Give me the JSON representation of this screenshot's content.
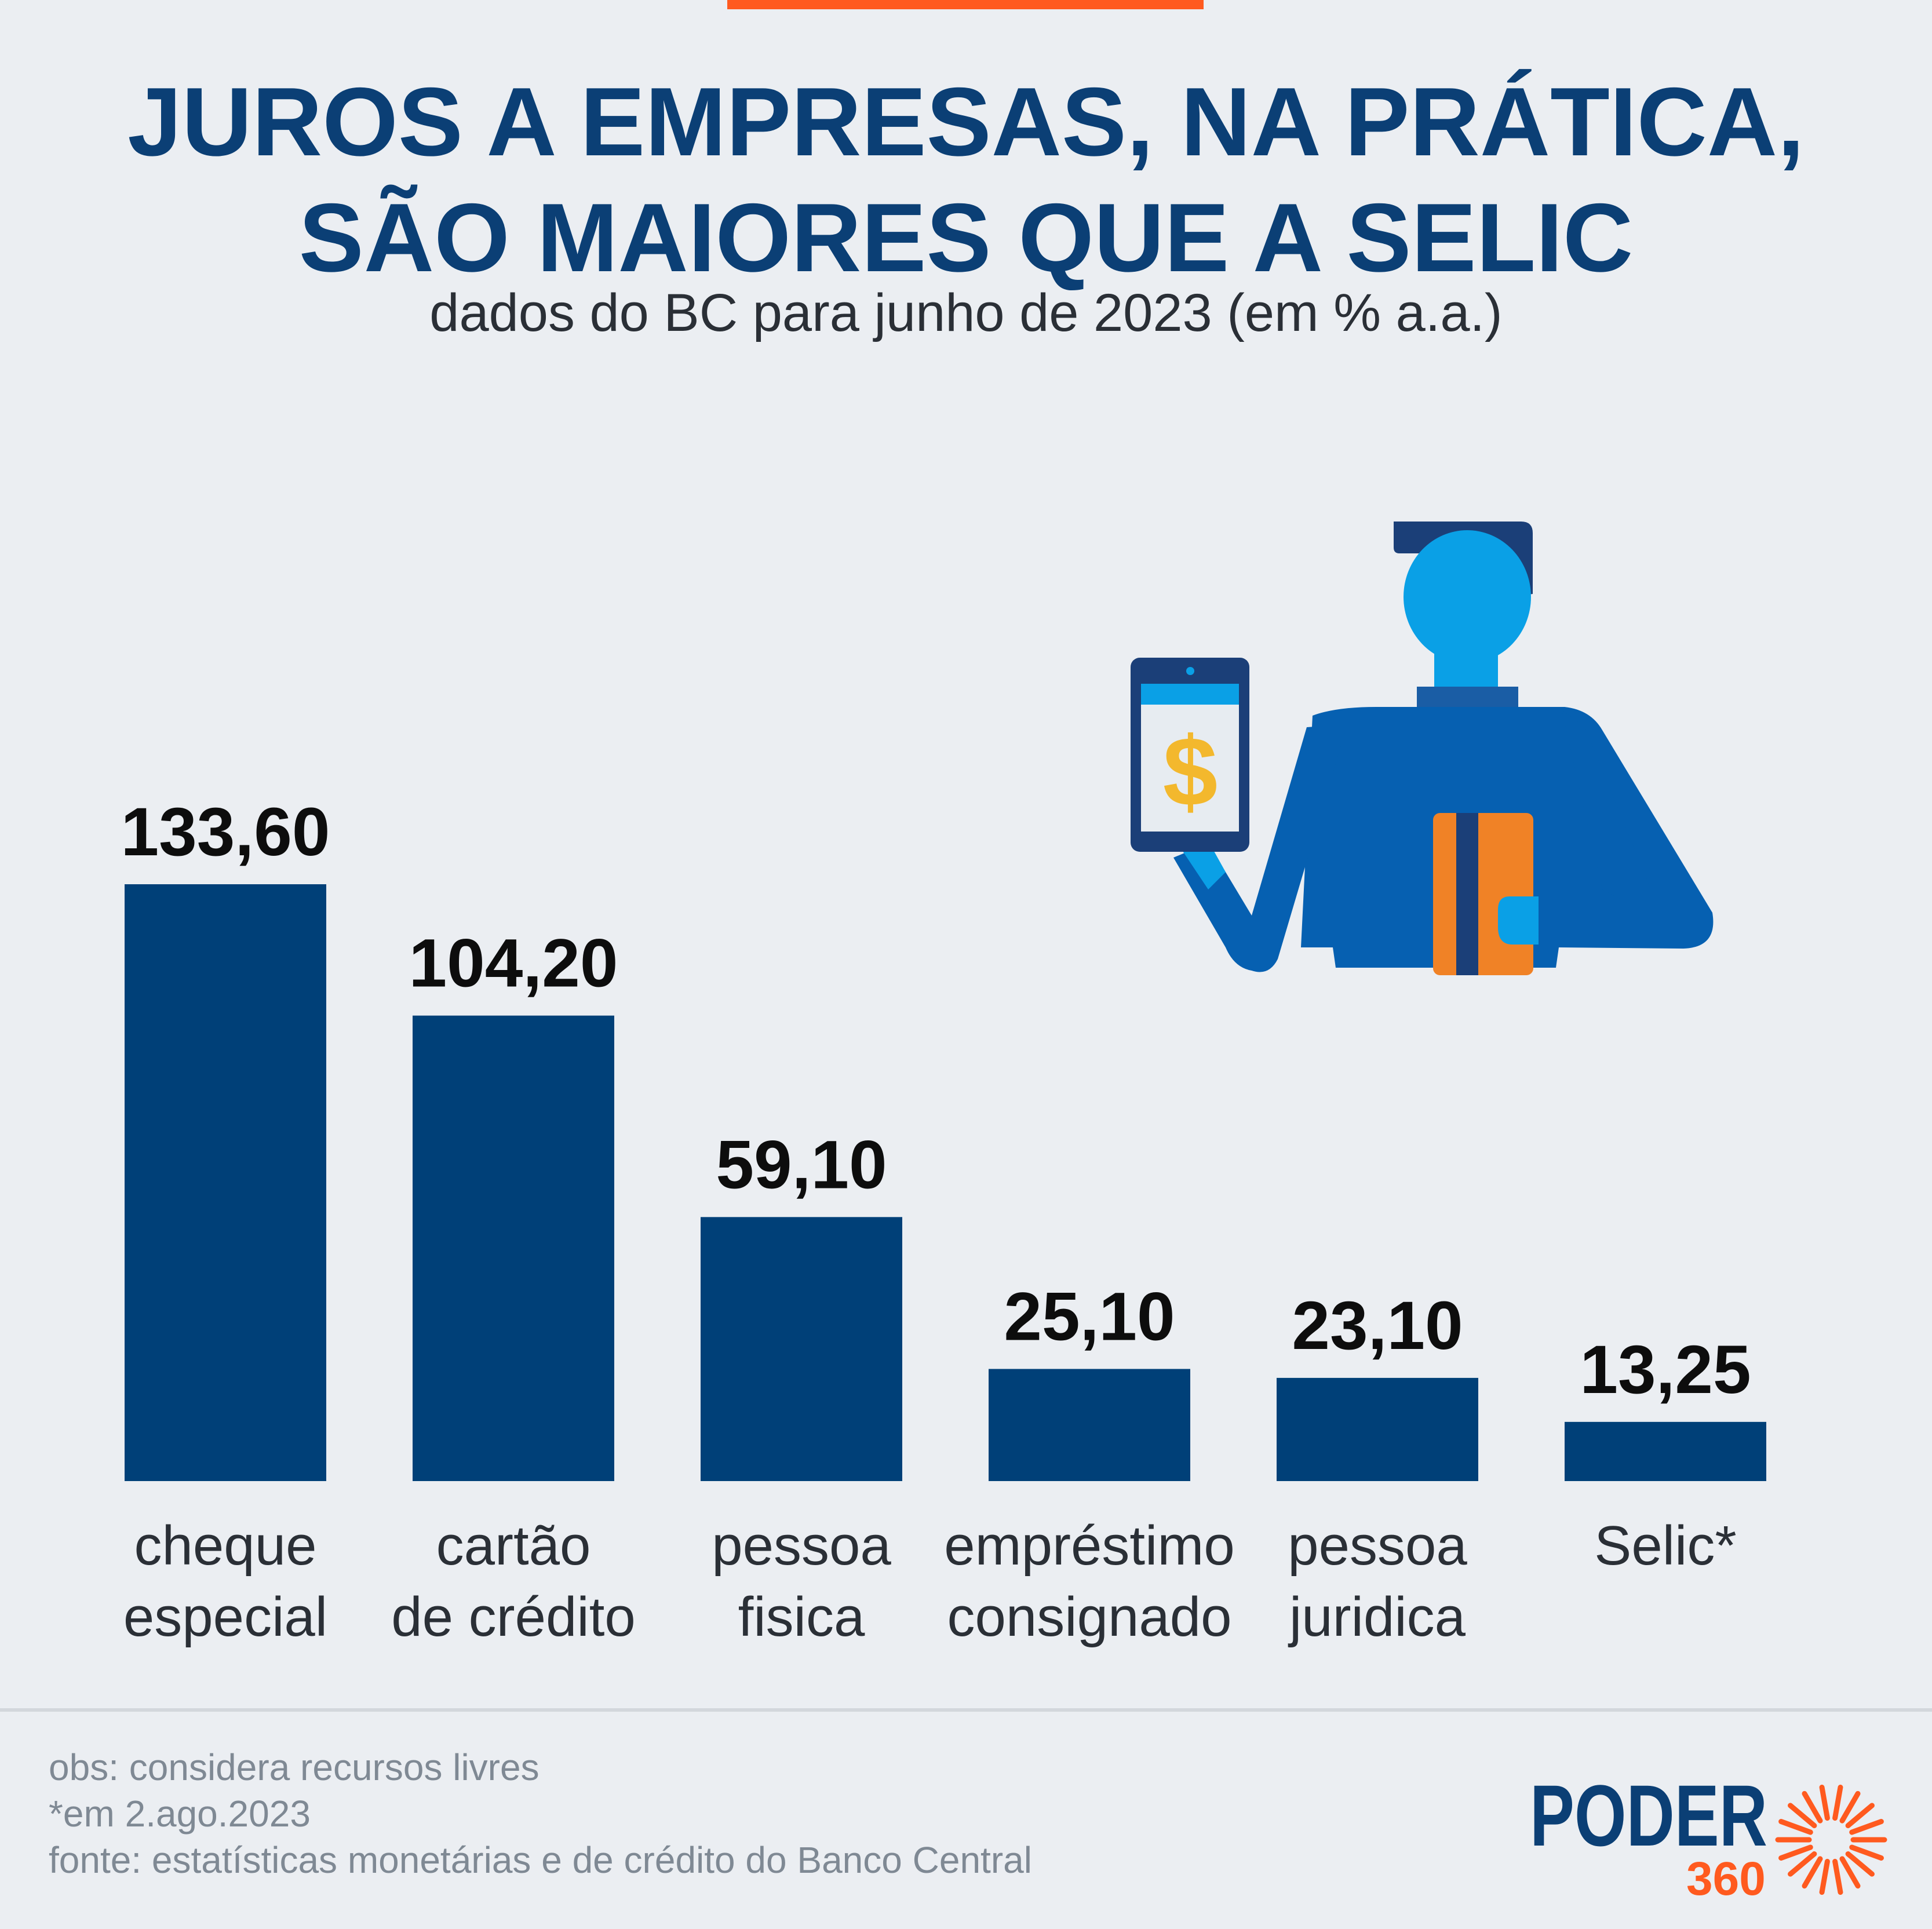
{
  "title_line1": "JUROS A EMPRESAS, NA PRÁTICA,",
  "title_line2": "SÃO MAIORES QUE A SELIC",
  "subtitle": "dados do BC para junho de 2023 (em % a.a.)",
  "notes": {
    "obs": "obs: considera recursos livres",
    "date": "*em 2.ago.2023",
    "source": "fonte: estatísticas monetárias e de crédito do Banco Central"
  },
  "logo": {
    "brand": "PODER",
    "number": "360"
  },
  "illustration": {
    "tablet_symbol": "$",
    "icon": "man-with-tablet-and-card-icon"
  },
  "colors": {
    "background": "#ebeef2",
    "bar": "#004078",
    "title": "#0b3f75",
    "accent": "#ff5a1f"
  },
  "chart_data": {
    "type": "bar",
    "title": "JUROS A EMPRESAS, NA PRÁTICA, SÃO MAIORES QUE A SELIC",
    "subtitle": "dados do BC para junho de 2023 (em % a.a.)",
    "categories": [
      [
        "cheque",
        "especial"
      ],
      [
        "cartão",
        "de crédito"
      ],
      [
        "pessoa",
        "fisica"
      ],
      [
        "empréstimo",
        "consignado"
      ],
      [
        "pessoa",
        "juridica"
      ],
      [
        "Selic*"
      ]
    ],
    "values": [
      133.6,
      104.2,
      59.1,
      25.1,
      23.1,
      13.25
    ],
    "value_labels": [
      "133,60",
      "104,20",
      "59,10",
      "25,10",
      "23,10",
      "13,25"
    ],
    "ylim": [
      0,
      133.6
    ],
    "grid": false,
    "legend": "none"
  }
}
